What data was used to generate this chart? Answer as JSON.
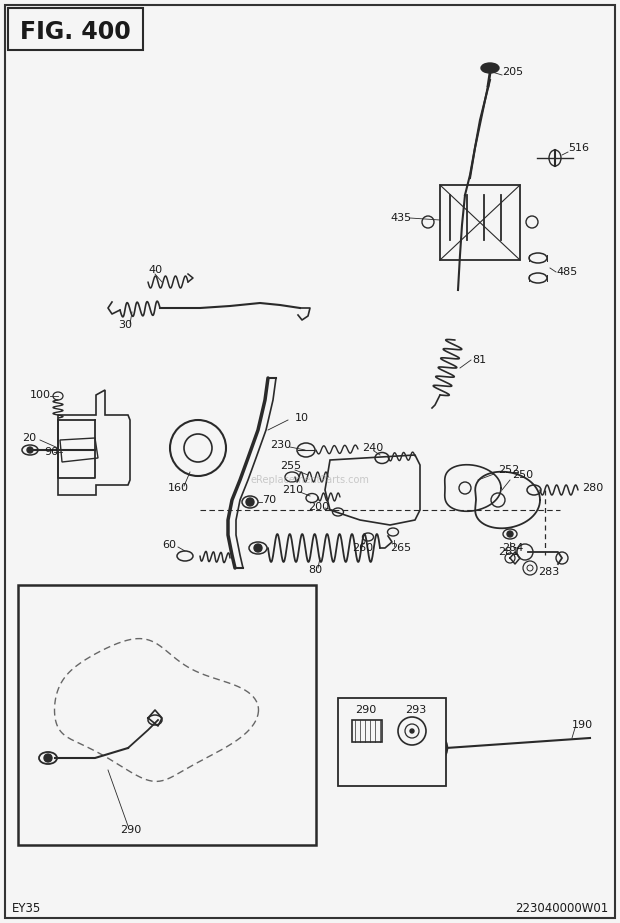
{
  "title": "FIG. 400",
  "bottom_left": "EY35",
  "bottom_right": "223040000W01",
  "bg_color": "#f5f5f5",
  "border_color": "#333333",
  "line_color": "#2a2a2a",
  "text_color": "#1a1a1a",
  "watermark": "eReplacementParts.com",
  "fig_width": 6.2,
  "fig_height": 9.23,
  "dpi": 100
}
